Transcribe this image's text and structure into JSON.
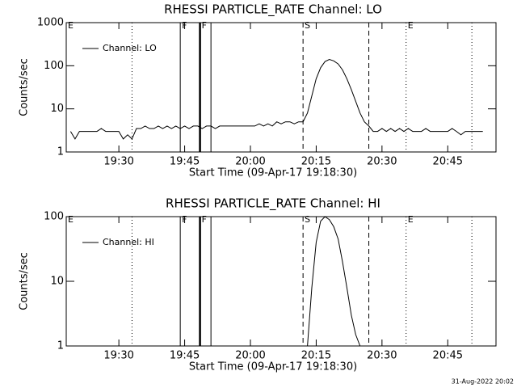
{
  "chart_data": [
    {
      "type": "line",
      "title": "RHESSI PARTICLE_RATE Channel: LO",
      "xlabel": "Start Time (09-Apr-17 19:18:30)",
      "ylabel": "Counts/sec",
      "log_y": true,
      "legend": "upper left",
      "xlim": [
        "19:18",
        "20:56"
      ],
      "xticks": [
        "19:30",
        "19:45",
        "20:00",
        "20:15",
        "20:30",
        "20:45"
      ],
      "ylim": [
        1,
        1000
      ],
      "yticks": [
        1,
        10,
        100,
        1000
      ],
      "markers": [
        {
          "x": "19:33",
          "style": "dotted"
        },
        {
          "x": "19:44",
          "style": "solid"
        },
        {
          "x": "19:48:30",
          "style": "thick"
        },
        {
          "x": "19:51",
          "style": "solid"
        },
        {
          "x": "20:12",
          "style": "dashed"
        },
        {
          "x": "20:27",
          "style": "dashed"
        },
        {
          "x": "20:35:30",
          "style": "dotted"
        },
        {
          "x": "20:50:30",
          "style": "dotted"
        }
      ],
      "flags": [
        {
          "x": "19:18",
          "label": "E"
        },
        {
          "x": "19:44",
          "label": "F"
        },
        {
          "x": "19:48:30",
          "label": "F"
        },
        {
          "x": "20:12",
          "label": "S"
        },
        {
          "x": "20:35:30",
          "label": "E"
        }
      ],
      "x": [
        "19:19",
        "19:20",
        "19:21",
        "19:22",
        "19:23",
        "19:24",
        "19:25",
        "19:26",
        "19:27",
        "19:28",
        "19:29",
        "19:30",
        "19:31",
        "19:32",
        "19:33",
        "19:34",
        "19:35",
        "19:36",
        "19:37",
        "19:38",
        "19:39",
        "19:40",
        "19:41",
        "19:42",
        "19:43",
        "19:44",
        "19:45",
        "19:46",
        "19:47",
        "19:48",
        "19:49",
        "19:50",
        "19:51",
        "19:52",
        "19:53",
        "19:54",
        "19:55",
        "19:56",
        "19:57",
        "19:58",
        "19:59",
        "20:00",
        "20:01",
        "20:02",
        "20:03",
        "20:04",
        "20:05",
        "20:06",
        "20:07",
        "20:08",
        "20:09",
        "20:10",
        "20:11",
        "20:12",
        "20:13",
        "20:14",
        "20:15",
        "20:16",
        "20:17",
        "20:18",
        "20:19",
        "20:20",
        "20:21",
        "20:22",
        "20:23",
        "20:24",
        "20:25",
        "20:26",
        "20:27",
        "20:28",
        "20:29",
        "20:30",
        "20:31",
        "20:32",
        "20:33",
        "20:34",
        "20:35",
        "20:36",
        "20:37",
        "20:38",
        "20:39",
        "20:40",
        "20:41",
        "20:42",
        "20:43",
        "20:44",
        "20:45",
        "20:46",
        "20:47",
        "20:48",
        "20:49",
        "20:50",
        "20:51",
        "20:52",
        "20:53"
      ],
      "series": [
        {
          "name": "Channel: LO",
          "color": "#000000",
          "values": [
            3,
            2,
            3,
            3,
            3,
            3,
            3,
            3.5,
            3,
            3,
            3,
            3,
            2,
            2.5,
            2,
            3.5,
            3.5,
            4,
            3.5,
            3.5,
            4,
            3.5,
            4,
            3.5,
            4,
            3.5,
            4,
            3.5,
            4,
            4,
            3.5,
            4,
            4,
            3.5,
            4,
            4,
            4,
            4,
            4,
            4,
            4,
            4,
            4,
            4.5,
            4,
            4.5,
            4,
            5,
            4.5,
            5,
            5,
            4.5,
            5,
            5,
            8,
            20,
            50,
            90,
            125,
            140,
            130,
            110,
            80,
            50,
            28,
            15,
            8,
            5,
            4,
            3,
            3,
            3.5,
            3,
            3.5,
            3,
            3.5,
            3,
            3.5,
            3,
            3,
            3,
            3.5,
            3,
            3,
            3,
            3,
            3,
            3.5,
            3,
            2.5,
            3,
            3,
            3,
            3,
            3
          ]
        }
      ]
    },
    {
      "type": "line",
      "title": "RHESSI PARTICLE_RATE Channel: HI",
      "xlabel": "Start Time (09-Apr-17 19:18:30)",
      "ylabel": "Counts/sec",
      "log_y": true,
      "legend": "upper left",
      "xlim": [
        "19:18",
        "20:56"
      ],
      "xticks": [
        "19:30",
        "19:45",
        "20:00",
        "20:15",
        "20:30",
        "20:45"
      ],
      "ylim": [
        1,
        100
      ],
      "yticks": [
        1,
        10,
        100
      ],
      "markers": [
        {
          "x": "19:33",
          "style": "dotted"
        },
        {
          "x": "19:44",
          "style": "solid"
        },
        {
          "x": "19:48:30",
          "style": "thick"
        },
        {
          "x": "19:51",
          "style": "solid"
        },
        {
          "x": "20:12",
          "style": "dashed"
        },
        {
          "x": "20:27",
          "style": "dashed"
        },
        {
          "x": "20:35:30",
          "style": "dotted"
        },
        {
          "x": "20:50:30",
          "style": "dotted"
        }
      ],
      "flags": [
        {
          "x": "19:18",
          "label": "E"
        },
        {
          "x": "19:44",
          "label": "F"
        },
        {
          "x": "19:48:30",
          "label": "F"
        },
        {
          "x": "20:12",
          "label": "S"
        },
        {
          "x": "20:35:30",
          "label": "E"
        }
      ],
      "x": [
        "20:13",
        "20:14",
        "20:15",
        "20:16",
        "20:17",
        "20:18",
        "20:19",
        "20:20",
        "20:21",
        "20:22",
        "20:23",
        "20:24",
        "20:25"
      ],
      "series": [
        {
          "name": "Channel: HI",
          "color": "#000000",
          "values": [
            1,
            8,
            40,
            85,
            100,
            90,
            70,
            45,
            20,
            8,
            3,
            1.5,
            1
          ]
        }
      ]
    }
  ],
  "footer": "31-Aug-2022 20:02"
}
